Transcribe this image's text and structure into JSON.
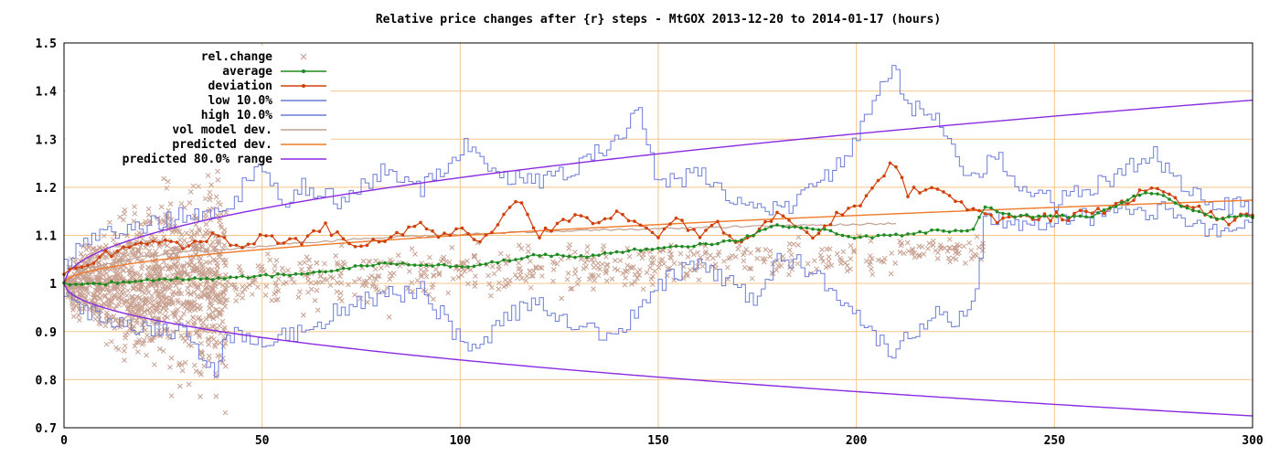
{
  "chart_data": {
    "type": "scatter",
    "title": "Relative price changes after {r} steps - MtGOX 2013-12-20 to 2014-01-17 (hours)",
    "xlabel": "",
    "ylabel": "",
    "xlim": [
      0,
      300
    ],
    "ylim": [
      0.7,
      1.5
    ],
    "grid": true,
    "legend_position": "top-left",
    "x_ticks": [
      "0",
      "50",
      "100",
      "150",
      "200",
      "250",
      "300"
    ],
    "y_ticks": [
      "0.7",
      "0.8",
      "0.9",
      "1",
      "1.1",
      "1.2",
      "1.3",
      "1.4",
      "1.5"
    ],
    "series": [
      {
        "name": "rel.change",
        "color": "#c8a090",
        "style": "points-x"
      },
      {
        "name": "average",
        "color": "#1f8a1f",
        "style": "linespoints"
      },
      {
        "name": "deviation",
        "color": "#d0400a",
        "style": "linespoints"
      },
      {
        "name": "low 10.0%",
        "color": "#6c7cd8",
        "style": "steps"
      },
      {
        "name": "high 10.0%",
        "color": "#6c7cd8",
        "style": "steps"
      },
      {
        "name": "vol model dev.",
        "color": "#c0a090",
        "style": "line"
      },
      {
        "name": "predicted dev.",
        "color": "#f07a2a",
        "style": "line"
      },
      {
        "name": "predicted 80.0% range",
        "color": "#8a2be2",
        "style": "line"
      }
    ],
    "series_data": {
      "average": {
        "x": [
          0,
          10,
          20,
          30,
          40,
          50,
          60,
          70,
          80,
          90,
          100,
          110,
          120,
          130,
          140,
          150,
          160,
          170,
          180,
          190,
          200,
          210,
          220,
          230,
          232,
          240,
          250,
          260,
          270,
          275,
          280,
          290,
          300
        ],
        "y": [
          1.0,
          1.0,
          1.005,
          1.01,
          1.01,
          1.015,
          1.02,
          1.03,
          1.04,
          1.04,
          1.035,
          1.045,
          1.06,
          1.055,
          1.065,
          1.075,
          1.08,
          1.09,
          1.12,
          1.115,
          1.095,
          1.1,
          1.11,
          1.11,
          1.16,
          1.14,
          1.14,
          1.14,
          1.18,
          1.19,
          1.17,
          1.135,
          1.14
        ]
      },
      "deviation": {
        "x": [
          0,
          5,
          10,
          15,
          20,
          25,
          30,
          35,
          40,
          45,
          50,
          55,
          60,
          65,
          70,
          75,
          80,
          85,
          90,
          95,
          100,
          105,
          110,
          115,
          120,
          125,
          130,
          135,
          140,
          145,
          150,
          155,
          160,
          165,
          170,
          175,
          180,
          185,
          190,
          195,
          200,
          205,
          209,
          213,
          220,
          225,
          230,
          235,
          240,
          245,
          250,
          255,
          260,
          265,
          270,
          275,
          280,
          285,
          290,
          295,
          300
        ],
        "y": [
          1.02,
          1.04,
          1.06,
          1.07,
          1.075,
          1.09,
          1.08,
          1.09,
          1.1,
          1.07,
          1.1,
          1.08,
          1.09,
          1.12,
          1.1,
          1.08,
          1.09,
          1.1,
          1.13,
          1.09,
          1.12,
          1.09,
          1.13,
          1.17,
          1.1,
          1.12,
          1.14,
          1.13,
          1.15,
          1.13,
          1.1,
          1.13,
          1.1,
          1.12,
          1.09,
          1.1,
          1.15,
          1.12,
          1.1,
          1.14,
          1.16,
          1.2,
          1.25,
          1.19,
          1.2,
          1.18,
          1.15,
          1.13,
          1.14,
          1.13,
          1.14,
          1.14,
          1.15,
          1.16,
          1.18,
          1.2,
          1.17,
          1.16,
          1.14,
          1.13,
          1.14
        ]
      },
      "low_10": {
        "x": [
          0,
          5,
          10,
          20,
          30,
          38,
          40,
          50,
          60,
          70,
          80,
          90,
          100,
          105,
          110,
          120,
          130,
          140,
          145,
          150,
          160,
          170,
          175,
          180,
          190,
          200,
          205,
          209,
          215,
          220,
          225,
          230,
          232,
          240,
          250,
          260,
          270,
          280,
          290,
          300
        ],
        "y": [
          0.97,
          0.94,
          0.93,
          0.91,
          0.9,
          0.81,
          0.9,
          0.88,
          0.9,
          0.95,
          0.97,
          0.99,
          0.88,
          0.86,
          0.93,
          0.96,
          0.91,
          0.89,
          0.95,
          1.0,
          1.04,
          0.99,
          0.96,
          1.06,
          1.02,
          0.94,
          0.88,
          0.86,
          0.9,
          0.95,
          0.92,
          0.98,
          1.14,
          1.13,
          1.13,
          1.14,
          1.15,
          1.15,
          1.11,
          1.12
        ]
      },
      "high_10": {
        "x": [
          0,
          5,
          10,
          20,
          30,
          40,
          50,
          55,
          60,
          70,
          80,
          90,
          100,
          103,
          110,
          120,
          130,
          140,
          145,
          150,
          160,
          170,
          180,
          190,
          200,
          205,
          209,
          213,
          220,
          225,
          230,
          235,
          240,
          250,
          260,
          270,
          275,
          280,
          290,
          300
        ],
        "y": [
          1.04,
          1.08,
          1.1,
          1.12,
          1.14,
          1.15,
          1.25,
          1.15,
          1.2,
          1.17,
          1.23,
          1.2,
          1.28,
          1.29,
          1.22,
          1.21,
          1.25,
          1.3,
          1.36,
          1.2,
          1.23,
          1.17,
          1.15,
          1.2,
          1.3,
          1.39,
          1.45,
          1.36,
          1.36,
          1.26,
          1.22,
          1.27,
          1.2,
          1.17,
          1.2,
          1.25,
          1.27,
          1.22,
          1.16,
          1.16
        ]
      },
      "vol_model_dev": {
        "x": [
          0,
          5,
          10,
          20,
          30,
          40,
          60,
          80,
          100,
          120,
          140,
          160,
          180,
          200,
          210
        ],
        "y": [
          1.0,
          1.03,
          1.04,
          1.055,
          1.065,
          1.07,
          1.085,
          1.095,
          1.102,
          1.108,
          1.112,
          1.116,
          1.12,
          1.123,
          1.125
        ]
      },
      "predicted_dev": {
        "formula": "1 + 0.01*sqrt(x)"
      },
      "predicted_range_high": {
        "formula": "1 + 0.022*sqrt(x)"
      },
      "predicted_range_low": {
        "formula": "1 - 0.0159*sqrt(x)"
      }
    }
  }
}
